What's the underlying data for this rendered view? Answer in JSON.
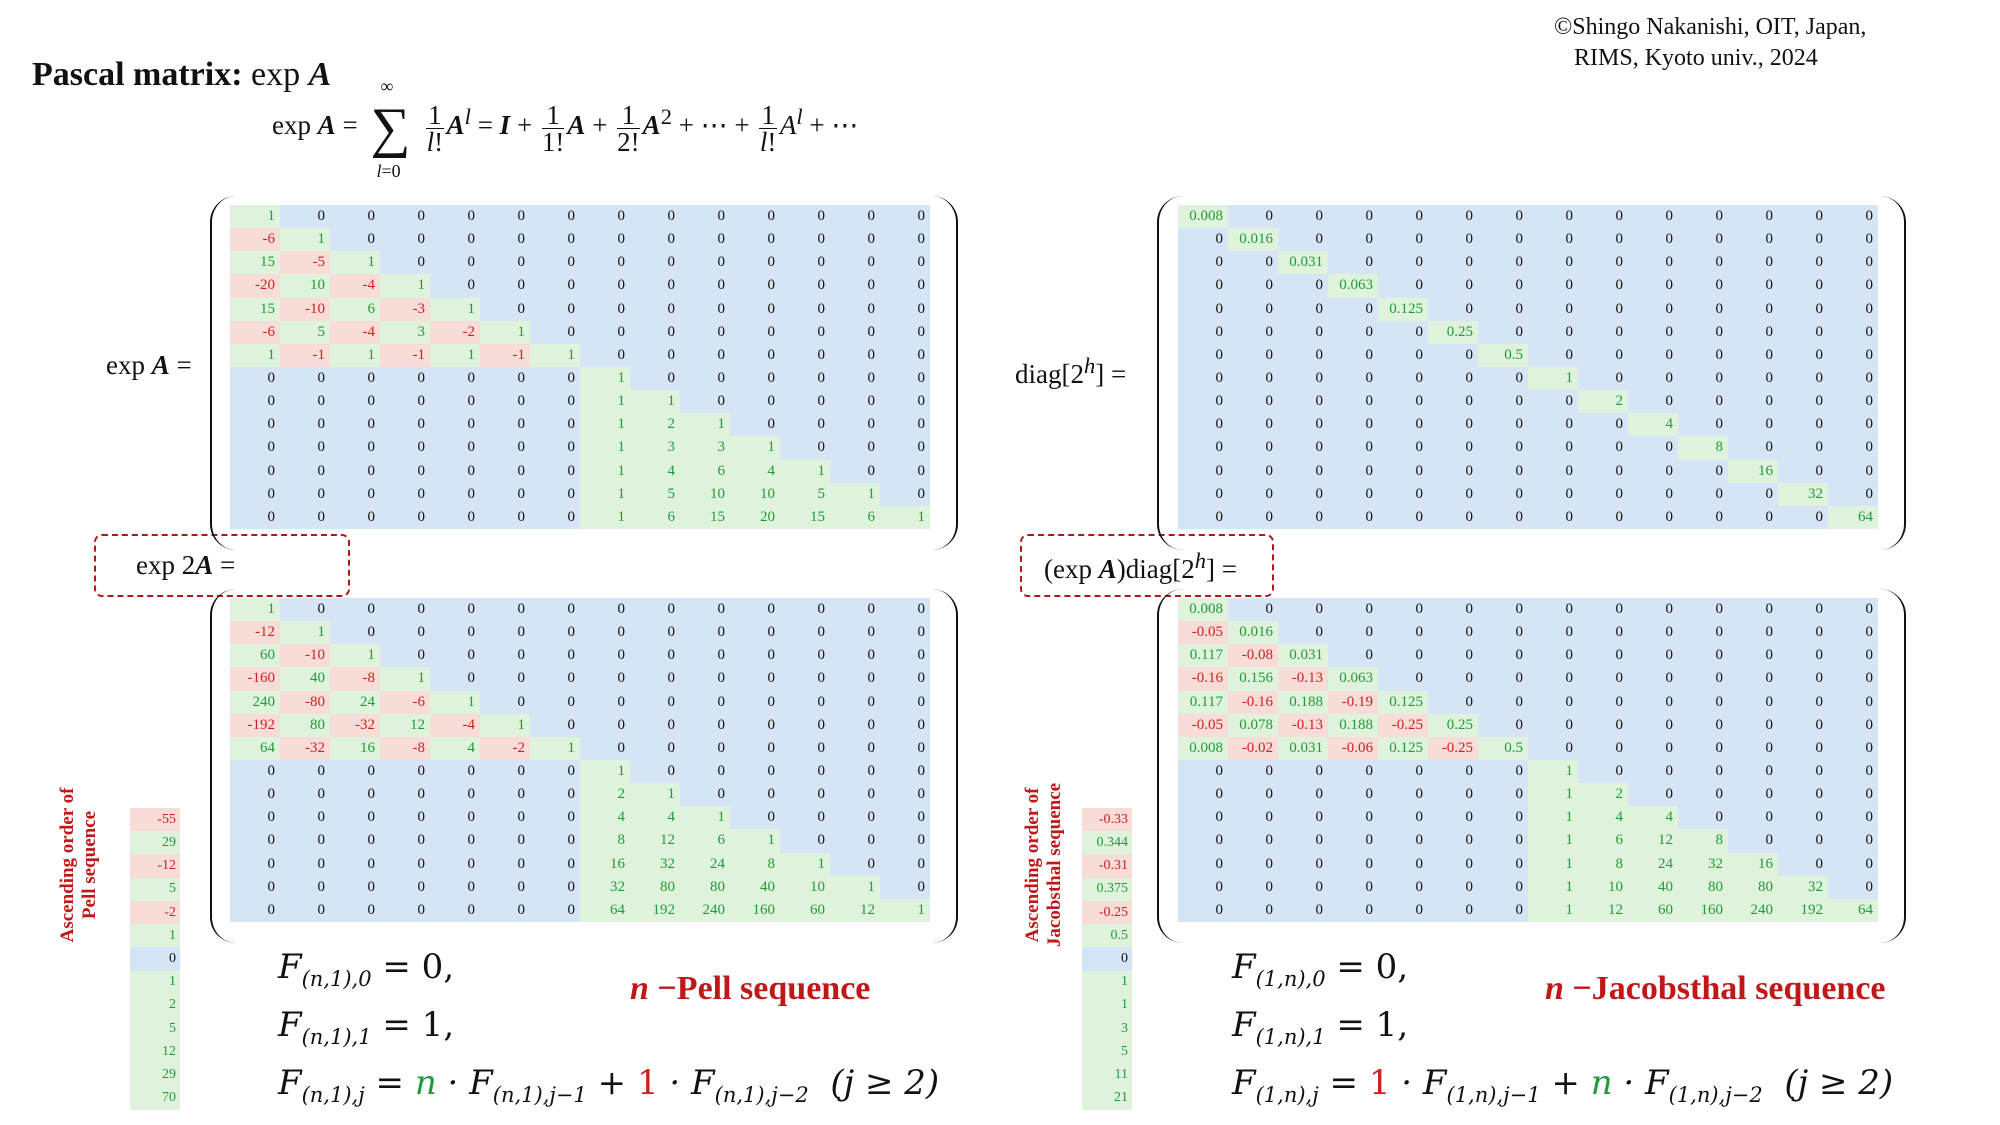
{
  "copyright": [
    "©Shingo Nakanishi, OIT, Japan,",
    "RIMS, Kyoto univ., 2024"
  ],
  "title": {
    "bold": "Pascal matrix:",
    "rest": "exp"
  },
  "labels": {
    "expA": "exp",
    "exp2A": "exp 2",
    "diag": "diag[2",
    "diag_close": "] =",
    "expAdiag": "(exp",
    "expAdiag_rest": ")diag[2"
  },
  "colors": {
    "blue": "#d5e5f5",
    "green": "#dff2dc",
    "red": "#f8dcd8",
    "pos_text": "#229a3a",
    "neg_text": "#cf1f1f",
    "box": "#b01818"
  },
  "matrices": {
    "expA": [
      [
        "1",
        "0",
        "0",
        "0",
        "0",
        "0",
        "0",
        "0",
        "0",
        "0",
        "0",
        "0",
        "0",
        "0"
      ],
      [
        "-6",
        "1",
        "0",
        "0",
        "0",
        "0",
        "0",
        "0",
        "0",
        "0",
        "0",
        "0",
        "0",
        "0"
      ],
      [
        "15",
        "-5",
        "1",
        "0",
        "0",
        "0",
        "0",
        "0",
        "0",
        "0",
        "0",
        "0",
        "0",
        "0"
      ],
      [
        "-20",
        "10",
        "-4",
        "1",
        "0",
        "0",
        "0",
        "0",
        "0",
        "0",
        "0",
        "0",
        "0",
        "0"
      ],
      [
        "15",
        "-10",
        "6",
        "-3",
        "1",
        "0",
        "0",
        "0",
        "0",
        "0",
        "0",
        "0",
        "0",
        "0"
      ],
      [
        "-6",
        "5",
        "-4",
        "3",
        "-2",
        "1",
        "0",
        "0",
        "0",
        "0",
        "0",
        "0",
        "0",
        "0"
      ],
      [
        "1",
        "-1",
        "1",
        "-1",
        "1",
        "-1",
        "1",
        "0",
        "0",
        "0",
        "0",
        "0",
        "0",
        "0"
      ],
      [
        "0",
        "0",
        "0",
        "0",
        "0",
        "0",
        "0",
        "1",
        "0",
        "0",
        "0",
        "0",
        "0",
        "0"
      ],
      [
        "0",
        "0",
        "0",
        "0",
        "0",
        "0",
        "0",
        "1",
        "1",
        "0",
        "0",
        "0",
        "0",
        "0"
      ],
      [
        "0",
        "0",
        "0",
        "0",
        "0",
        "0",
        "0",
        "1",
        "2",
        "1",
        "0",
        "0",
        "0",
        "0"
      ],
      [
        "0",
        "0",
        "0",
        "0",
        "0",
        "0",
        "0",
        "1",
        "3",
        "3",
        "1",
        "0",
        "0",
        "0"
      ],
      [
        "0",
        "0",
        "0",
        "0",
        "0",
        "0",
        "0",
        "1",
        "4",
        "6",
        "4",
        "1",
        "0",
        "0"
      ],
      [
        "0",
        "0",
        "0",
        "0",
        "0",
        "0",
        "0",
        "1",
        "5",
        "10",
        "10",
        "5",
        "1",
        "0"
      ],
      [
        "0",
        "0",
        "0",
        "0",
        "0",
        "0",
        "0",
        "1",
        "6",
        "15",
        "20",
        "15",
        "6",
        "1"
      ]
    ],
    "exp2A": [
      [
        "1",
        "0",
        "0",
        "0",
        "0",
        "0",
        "0",
        "0",
        "0",
        "0",
        "0",
        "0",
        "0",
        "0"
      ],
      [
        "-12",
        "1",
        "0",
        "0",
        "0",
        "0",
        "0",
        "0",
        "0",
        "0",
        "0",
        "0",
        "0",
        "0"
      ],
      [
        "60",
        "-10",
        "1",
        "0",
        "0",
        "0",
        "0",
        "0",
        "0",
        "0",
        "0",
        "0",
        "0",
        "0"
      ],
      [
        "-160",
        "40",
        "-8",
        "1",
        "0",
        "0",
        "0",
        "0",
        "0",
        "0",
        "0",
        "0",
        "0",
        "0"
      ],
      [
        "240",
        "-80",
        "24",
        "-6",
        "1",
        "0",
        "0",
        "0",
        "0",
        "0",
        "0",
        "0",
        "0",
        "0"
      ],
      [
        "-192",
        "80",
        "-32",
        "12",
        "-4",
        "1",
        "0",
        "0",
        "0",
        "0",
        "0",
        "0",
        "0",
        "0"
      ],
      [
        "64",
        "-32",
        "16",
        "-8",
        "4",
        "-2",
        "1",
        "0",
        "0",
        "0",
        "0",
        "0",
        "0",
        "0"
      ],
      [
        "0",
        "0",
        "0",
        "0",
        "0",
        "0",
        "0",
        "1",
        "0",
        "0",
        "0",
        "0",
        "0",
        "0"
      ],
      [
        "0",
        "0",
        "0",
        "0",
        "0",
        "0",
        "0",
        "2",
        "1",
        "0",
        "0",
        "0",
        "0",
        "0"
      ],
      [
        "0",
        "0",
        "0",
        "0",
        "0",
        "0",
        "0",
        "4",
        "4",
        "1",
        "0",
        "0",
        "0",
        "0"
      ],
      [
        "0",
        "0",
        "0",
        "0",
        "0",
        "0",
        "0",
        "8",
        "12",
        "6",
        "1",
        "0",
        "0",
        "0"
      ],
      [
        "0",
        "0",
        "0",
        "0",
        "0",
        "0",
        "0",
        "16",
        "32",
        "24",
        "8",
        "1",
        "0",
        "0"
      ],
      [
        "0",
        "0",
        "0",
        "0",
        "0",
        "0",
        "0",
        "32",
        "80",
        "80",
        "40",
        "10",
        "1",
        "0"
      ],
      [
        "0",
        "0",
        "0",
        "0",
        "0",
        "0",
        "0",
        "64",
        "192",
        "240",
        "160",
        "60",
        "12",
        "1"
      ]
    ],
    "diag": [
      [
        "0.008",
        "0",
        "0",
        "0",
        "0",
        "0",
        "0",
        "0",
        "0",
        "0",
        "0",
        "0",
        "0",
        "0"
      ],
      [
        "0",
        "0.016",
        "0",
        "0",
        "0",
        "0",
        "0",
        "0",
        "0",
        "0",
        "0",
        "0",
        "0",
        "0"
      ],
      [
        "0",
        "0",
        "0.031",
        "0",
        "0",
        "0",
        "0",
        "0",
        "0",
        "0",
        "0",
        "0",
        "0",
        "0"
      ],
      [
        "0",
        "0",
        "0",
        "0.063",
        "0",
        "0",
        "0",
        "0",
        "0",
        "0",
        "0",
        "0",
        "0",
        "0"
      ],
      [
        "0",
        "0",
        "0",
        "0",
        "0.125",
        "0",
        "0",
        "0",
        "0",
        "0",
        "0",
        "0",
        "0",
        "0"
      ],
      [
        "0",
        "0",
        "0",
        "0",
        "0",
        "0.25",
        "0",
        "0",
        "0",
        "0",
        "0",
        "0",
        "0",
        "0"
      ],
      [
        "0",
        "0",
        "0",
        "0",
        "0",
        "0",
        "0.5",
        "0",
        "0",
        "0",
        "0",
        "0",
        "0",
        "0"
      ],
      [
        "0",
        "0",
        "0",
        "0",
        "0",
        "0",
        "0",
        "1",
        "0",
        "0",
        "0",
        "0",
        "0",
        "0"
      ],
      [
        "0",
        "0",
        "0",
        "0",
        "0",
        "0",
        "0",
        "0",
        "2",
        "0",
        "0",
        "0",
        "0",
        "0"
      ],
      [
        "0",
        "0",
        "0",
        "0",
        "0",
        "0",
        "0",
        "0",
        "0",
        "4",
        "0",
        "0",
        "0",
        "0"
      ],
      [
        "0",
        "0",
        "0",
        "0",
        "0",
        "0",
        "0",
        "0",
        "0",
        "0",
        "8",
        "0",
        "0",
        "0"
      ],
      [
        "0",
        "0",
        "0",
        "0",
        "0",
        "0",
        "0",
        "0",
        "0",
        "0",
        "0",
        "16",
        "0",
        "0"
      ],
      [
        "0",
        "0",
        "0",
        "0",
        "0",
        "0",
        "0",
        "0",
        "0",
        "0",
        "0",
        "0",
        "32",
        "0"
      ],
      [
        "0",
        "0",
        "0",
        "0",
        "0",
        "0",
        "0",
        "0",
        "0",
        "0",
        "0",
        "0",
        "0",
        "64"
      ]
    ],
    "expAdiag": [
      [
        "0.008",
        "0",
        "0",
        "0",
        "0",
        "0",
        "0",
        "0",
        "0",
        "0",
        "0",
        "0",
        "0",
        "0"
      ],
      [
        "-0.05",
        "0.016",
        "0",
        "0",
        "0",
        "0",
        "0",
        "0",
        "0",
        "0",
        "0",
        "0",
        "0",
        "0"
      ],
      [
        "0.117",
        "-0.08",
        "0.031",
        "0",
        "0",
        "0",
        "0",
        "0",
        "0",
        "0",
        "0",
        "0",
        "0",
        "0"
      ],
      [
        "-0.16",
        "0.156",
        "-0.13",
        "0.063",
        "0",
        "0",
        "0",
        "0",
        "0",
        "0",
        "0",
        "0",
        "0",
        "0"
      ],
      [
        "0.117",
        "-0.16",
        "0.188",
        "-0.19",
        "0.125",
        "0",
        "0",
        "0",
        "0",
        "0",
        "0",
        "0",
        "0",
        "0"
      ],
      [
        "-0.05",
        "0.078",
        "-0.13",
        "0.188",
        "-0.25",
        "0.25",
        "0",
        "0",
        "0",
        "0",
        "0",
        "0",
        "0",
        "0"
      ],
      [
        "0.008",
        "-0.02",
        "0.031",
        "-0.06",
        "0.125",
        "-0.25",
        "0.5",
        "0",
        "0",
        "0",
        "0",
        "0",
        "0",
        "0"
      ],
      [
        "0",
        "0",
        "0",
        "0",
        "0",
        "0",
        "0",
        "1",
        "0",
        "0",
        "0",
        "0",
        "0",
        "0"
      ],
      [
        "0",
        "0",
        "0",
        "0",
        "0",
        "0",
        "0",
        "1",
        "2",
        "0",
        "0",
        "0",
        "0",
        "0"
      ],
      [
        "0",
        "0",
        "0",
        "0",
        "0",
        "0",
        "0",
        "1",
        "4",
        "4",
        "0",
        "0",
        "0",
        "0"
      ],
      [
        "0",
        "0",
        "0",
        "0",
        "0",
        "0",
        "0",
        "1",
        "6",
        "12",
        "8",
        "0",
        "0",
        "0"
      ],
      [
        "0",
        "0",
        "0",
        "0",
        "0",
        "0",
        "0",
        "1",
        "8",
        "24",
        "32",
        "16",
        "0",
        "0"
      ],
      [
        "0",
        "0",
        "0",
        "0",
        "0",
        "0",
        "0",
        "1",
        "10",
        "40",
        "80",
        "80",
        "32",
        "0"
      ],
      [
        "0",
        "0",
        "0",
        "0",
        "0",
        "0",
        "0",
        "1",
        "12",
        "60",
        "160",
        "240",
        "192",
        "64"
      ]
    ]
  },
  "pell": {
    "side_title": [
      "Ascending order of",
      "Pell sequence"
    ],
    "values": [
      "-55",
      "29",
      "-12",
      "5",
      "-2",
      "1",
      "0",
      "1",
      "2",
      "5",
      "12",
      "29",
      "70"
    ],
    "name_n": "n",
    "name_rest": " −Pell sequence",
    "eq0": {
      "F": "F",
      "sub": "(n,1),0",
      "rhs": " = 0,"
    },
    "eq1": {
      "F": "F",
      "sub": "(n,1),1",
      "rhs": " = 1,"
    },
    "eq2": {
      "F": "F",
      "sub": "(n,1),j",
      "eqs": " = ",
      "c1": "n",
      "mid1": " · F",
      "sub1": "(n,1),j−1",
      "plus": " + ",
      "c2": "1",
      "mid2": " · F",
      "sub2": "(n,1),j−2",
      "cond": "(j ≥ 2)"
    }
  },
  "jacobsthal": {
    "side_title": [
      "Ascending order of",
      "Jacobsthal sequence"
    ],
    "values": [
      "-0.33",
      "0.344",
      "-0.31",
      "0.375",
      "-0.25",
      "0.5",
      "0",
      "1",
      "1",
      "3",
      "5",
      "11",
      "21"
    ],
    "name_n": "n",
    "name_rest": " −Jacobsthal sequence",
    "eq0": {
      "F": "F",
      "sub": "(1,n),0",
      "rhs": " = 0,"
    },
    "eq1": {
      "F": "F",
      "sub": "(1,n),1",
      "rhs": " = 1,"
    },
    "eq2": {
      "F": "F",
      "sub": "(1,n),j",
      "eqs": " = ",
      "c1": "1",
      "mid1": " · F",
      "sub1": "(1,n),j−1",
      "plus": " + ",
      "c2": "n",
      "mid2": " · F",
      "sub2": "(1,n),j−2",
      "cond": "(j ≥ 2)"
    }
  }
}
